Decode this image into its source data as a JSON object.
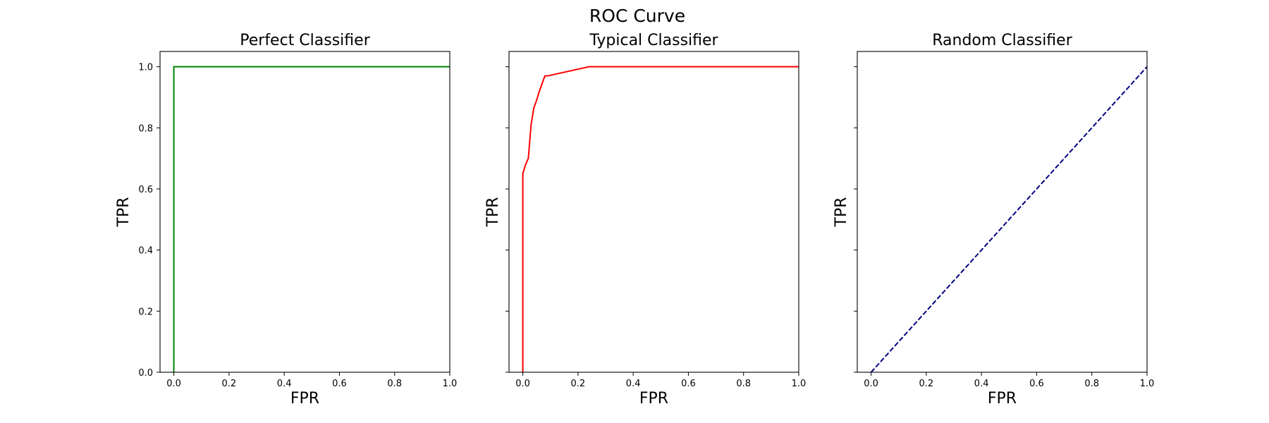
{
  "figure": {
    "title": "ROC Curve"
  },
  "chart_data": [
    {
      "type": "line",
      "title": "Perfect Classifier",
      "xlabel": "FPR",
      "ylabel": "TPR",
      "xlim": [
        -0.05,
        1.0
      ],
      "ylim": [
        0.0,
        1.05
      ],
      "xticks": [
        0.0,
        0.2,
        0.4,
        0.6,
        0.8,
        1.0
      ],
      "xtick_labels": [
        "0.0",
        "0.2",
        "0.4",
        "0.6",
        "0.8",
        "1.0"
      ],
      "yticks": [
        0.0,
        0.2,
        0.4,
        0.6,
        0.8,
        1.0
      ],
      "ytick_labels": [
        "0.0",
        "0.2",
        "0.4",
        "0.6",
        "0.8",
        "1.0"
      ],
      "grid": false,
      "series": [
        {
          "color": "#008000",
          "linestyle": "solid",
          "step": true,
          "x": [
            0.0,
            0.0,
            1.0
          ],
          "y": [
            0.0,
            1.0,
            1.0
          ]
        }
      ]
    },
    {
      "type": "line",
      "title": "Typical Classifier",
      "xlabel": "FPR",
      "ylabel": "TPR",
      "xlim": [
        -0.05,
        1.0
      ],
      "ylim": [
        0.0,
        1.05
      ],
      "xticks": [
        0.0,
        0.2,
        0.4,
        0.6,
        0.8,
        1.0
      ],
      "xtick_labels": [
        "0.0",
        "0.2",
        "0.4",
        "0.6",
        "0.8",
        "1.0"
      ],
      "yticks": [
        0.0,
        0.2,
        0.4,
        0.6,
        0.8,
        1.0
      ],
      "ytick_labels": [],
      "grid": false,
      "series": [
        {
          "color": "#ff0000",
          "linestyle": "solid",
          "step": true,
          "x": [
            0.0,
            0.0,
            0.01,
            0.02,
            0.03,
            0.04,
            0.05,
            0.06,
            0.07,
            0.08,
            0.09,
            0.24,
            1.0
          ],
          "y": [
            0.0,
            0.65,
            0.68,
            0.7,
            0.81,
            0.865,
            0.89,
            0.92,
            0.945,
            0.97,
            0.97,
            1.0,
            1.0
          ]
        }
      ]
    },
    {
      "type": "line",
      "title": "Random Classifier",
      "xlabel": "FPR",
      "ylabel": "TPR",
      "xlim": [
        -0.05,
        1.0
      ],
      "ylim": [
        0.0,
        1.05
      ],
      "xticks": [
        0.0,
        0.2,
        0.4,
        0.6,
        0.8,
        1.0
      ],
      "xtick_labels": [
        "0.0",
        "0.2",
        "0.4",
        "0.6",
        "0.8",
        "1.0"
      ],
      "yticks": [
        0.0,
        0.2,
        0.4,
        0.6,
        0.8,
        1.0
      ],
      "ytick_labels": [],
      "grid": false,
      "series": [
        {
          "color": "#000080",
          "linestyle": "dashed",
          "step": false,
          "x": [
            0.0,
            1.0
          ],
          "y": [
            0.0,
            1.0
          ]
        }
      ]
    }
  ]
}
